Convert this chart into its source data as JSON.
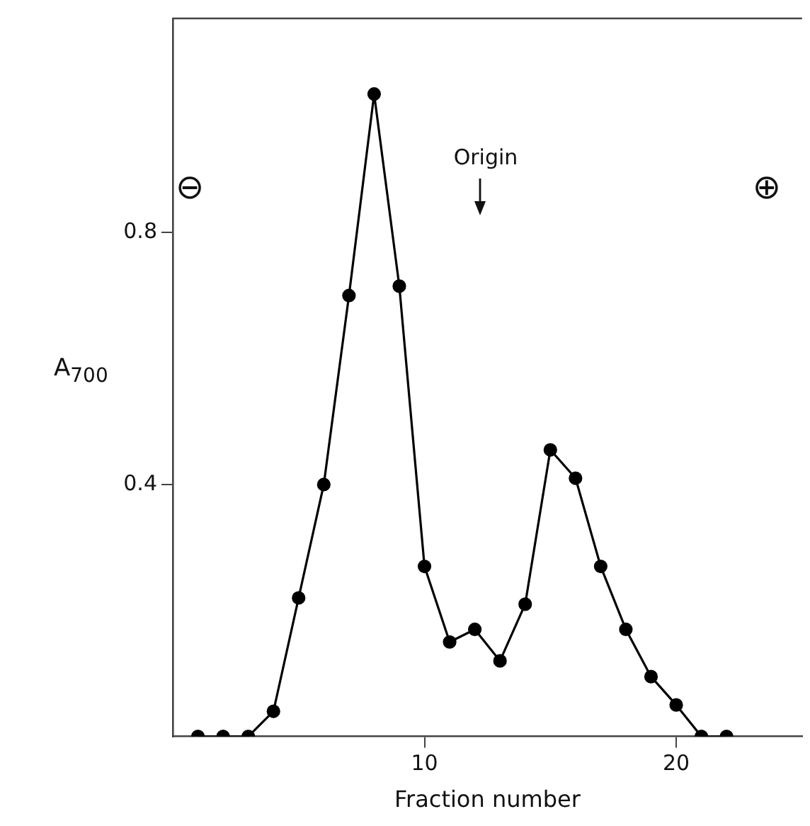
{
  "chart_data": {
    "type": "line",
    "xlabel": "Fraction number",
    "ylabel": "A$_{700}$",
    "x": [
      1,
      2,
      3,
      4,
      5,
      6,
      7,
      8,
      9,
      10,
      11,
      12,
      13,
      14,
      15,
      16,
      17,
      18,
      19,
      20,
      21,
      22
    ],
    "series": [
      {
        "color": "#000000",
        "values": [
          0,
          0,
          0,
          0.04,
          0.22,
          0.4,
          0.7,
          1.02,
          0.715,
          0.27,
          0.15,
          0.17,
          0.12,
          0.21,
          0.455,
          0.41,
          0.27,
          0.17,
          0.095,
          0.05,
          0,
          0
        ]
      }
    ],
    "xlim": [
      0,
      25
    ],
    "xticks": [
      10,
      20
    ],
    "ylim": [
      0,
      1.14
    ],
    "yticks": [
      0.4,
      0.8
    ],
    "grid": false,
    "legend": false,
    "marker": "circle",
    "line_style": "solid",
    "annotations": [
      "Origin",
      "⊖",
      "⊕"
    ]
  }
}
